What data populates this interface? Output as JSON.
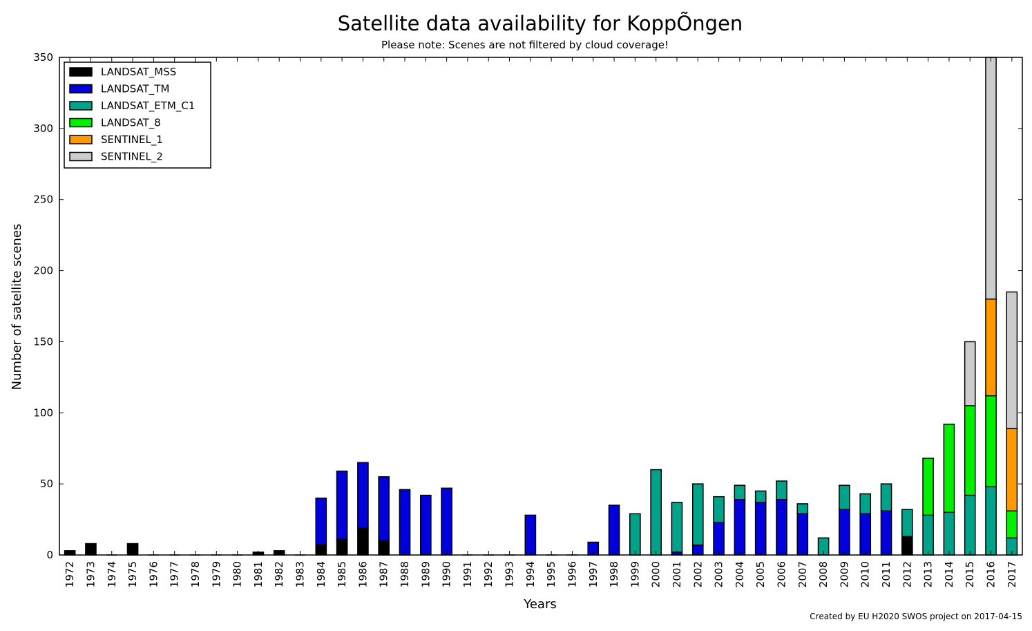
{
  "chart_data": {
    "type": "bar",
    "stacked": true,
    "title": "Satellite data availability for KoppÕngen",
    "subtitle": "Please note: Scenes are not filtered by cloud coverage!",
    "xlabel": "Years",
    "ylabel": "Number of satellite scenes",
    "ylim": [
      0,
      350
    ],
    "yticks": [
      0,
      50,
      100,
      150,
      200,
      250,
      300,
      350
    ],
    "grid": false,
    "legend_position": "top-left",
    "categories": [
      "1972",
      "1973",
      "1974",
      "1975",
      "1976",
      "1977",
      "1978",
      "1979",
      "1980",
      "1981",
      "1982",
      "1983",
      "1984",
      "1985",
      "1986",
      "1987",
      "1988",
      "1989",
      "1990",
      "1991",
      "1992",
      "1993",
      "1994",
      "1995",
      "1996",
      "1997",
      "1998",
      "1999",
      "2000",
      "2001",
      "2002",
      "2003",
      "2004",
      "2005",
      "2006",
      "2007",
      "2008",
      "2009",
      "2010",
      "2011",
      "2012",
      "2013",
      "2014",
      "2015",
      "2016",
      "2017"
    ],
    "series": [
      {
        "name": "LANDSAT_MSS",
        "color": "#000000",
        "values": [
          3,
          8,
          0,
          8,
          0,
          0,
          0,
          0,
          0,
          2,
          3,
          0,
          7,
          11,
          19,
          10,
          0,
          0,
          0,
          0,
          0,
          0,
          0,
          0,
          0,
          0,
          0,
          0,
          0,
          0,
          0,
          0,
          0,
          0,
          0,
          0,
          0,
          0,
          0,
          0,
          13,
          0,
          0,
          0,
          0,
          0
        ]
      },
      {
        "name": "LANDSAT_TM",
        "color": "#0000dd",
        "values": [
          0,
          0,
          0,
          0,
          0,
          0,
          0,
          0,
          0,
          0,
          0,
          0,
          33,
          48,
          46,
          45,
          46,
          42,
          47,
          0,
          0,
          0,
          28,
          0,
          0,
          9,
          35,
          0,
          0,
          2,
          7,
          23,
          39,
          37,
          39,
          29,
          0,
          32,
          29,
          31,
          0,
          0,
          0,
          0,
          0,
          0
        ]
      },
      {
        "name": "LANDSAT_ETM_C1",
        "color": "#00a38a",
        "values": [
          0,
          0,
          0,
          0,
          0,
          0,
          0,
          0,
          0,
          0,
          0,
          0,
          0,
          0,
          0,
          0,
          0,
          0,
          0,
          0,
          0,
          0,
          0,
          0,
          0,
          0,
          0,
          29,
          60,
          35,
          43,
          18,
          10,
          8,
          13,
          7,
          12,
          17,
          14,
          19,
          19,
          28,
          30,
          42,
          48,
          12
        ]
      },
      {
        "name": "LANDSAT_8",
        "color": "#00f000",
        "values": [
          0,
          0,
          0,
          0,
          0,
          0,
          0,
          0,
          0,
          0,
          0,
          0,
          0,
          0,
          0,
          0,
          0,
          0,
          0,
          0,
          0,
          0,
          0,
          0,
          0,
          0,
          0,
          0,
          0,
          0,
          0,
          0,
          0,
          0,
          0,
          0,
          0,
          0,
          0,
          0,
          0,
          40,
          62,
          63,
          64,
          19
        ]
      },
      {
        "name": "SENTINEL_1",
        "color": "#ff9900",
        "values": [
          0,
          0,
          0,
          0,
          0,
          0,
          0,
          0,
          0,
          0,
          0,
          0,
          0,
          0,
          0,
          0,
          0,
          0,
          0,
          0,
          0,
          0,
          0,
          0,
          0,
          0,
          0,
          0,
          0,
          0,
          0,
          0,
          0,
          0,
          0,
          0,
          0,
          0,
          0,
          0,
          0,
          0,
          0,
          0,
          68,
          58
        ]
      },
      {
        "name": "SENTINEL_2",
        "color": "#cccccc",
        "values": [
          0,
          0,
          0,
          0,
          0,
          0,
          0,
          0,
          0,
          0,
          0,
          0,
          0,
          0,
          0,
          0,
          0,
          0,
          0,
          0,
          0,
          0,
          0,
          0,
          0,
          0,
          0,
          0,
          0,
          0,
          0,
          0,
          0,
          0,
          0,
          0,
          0,
          0,
          0,
          0,
          0,
          0,
          0,
          45,
          170,
          96
        ]
      }
    ],
    "credit": "Created by EU H2020 SWOS project on 2017-04-15"
  }
}
